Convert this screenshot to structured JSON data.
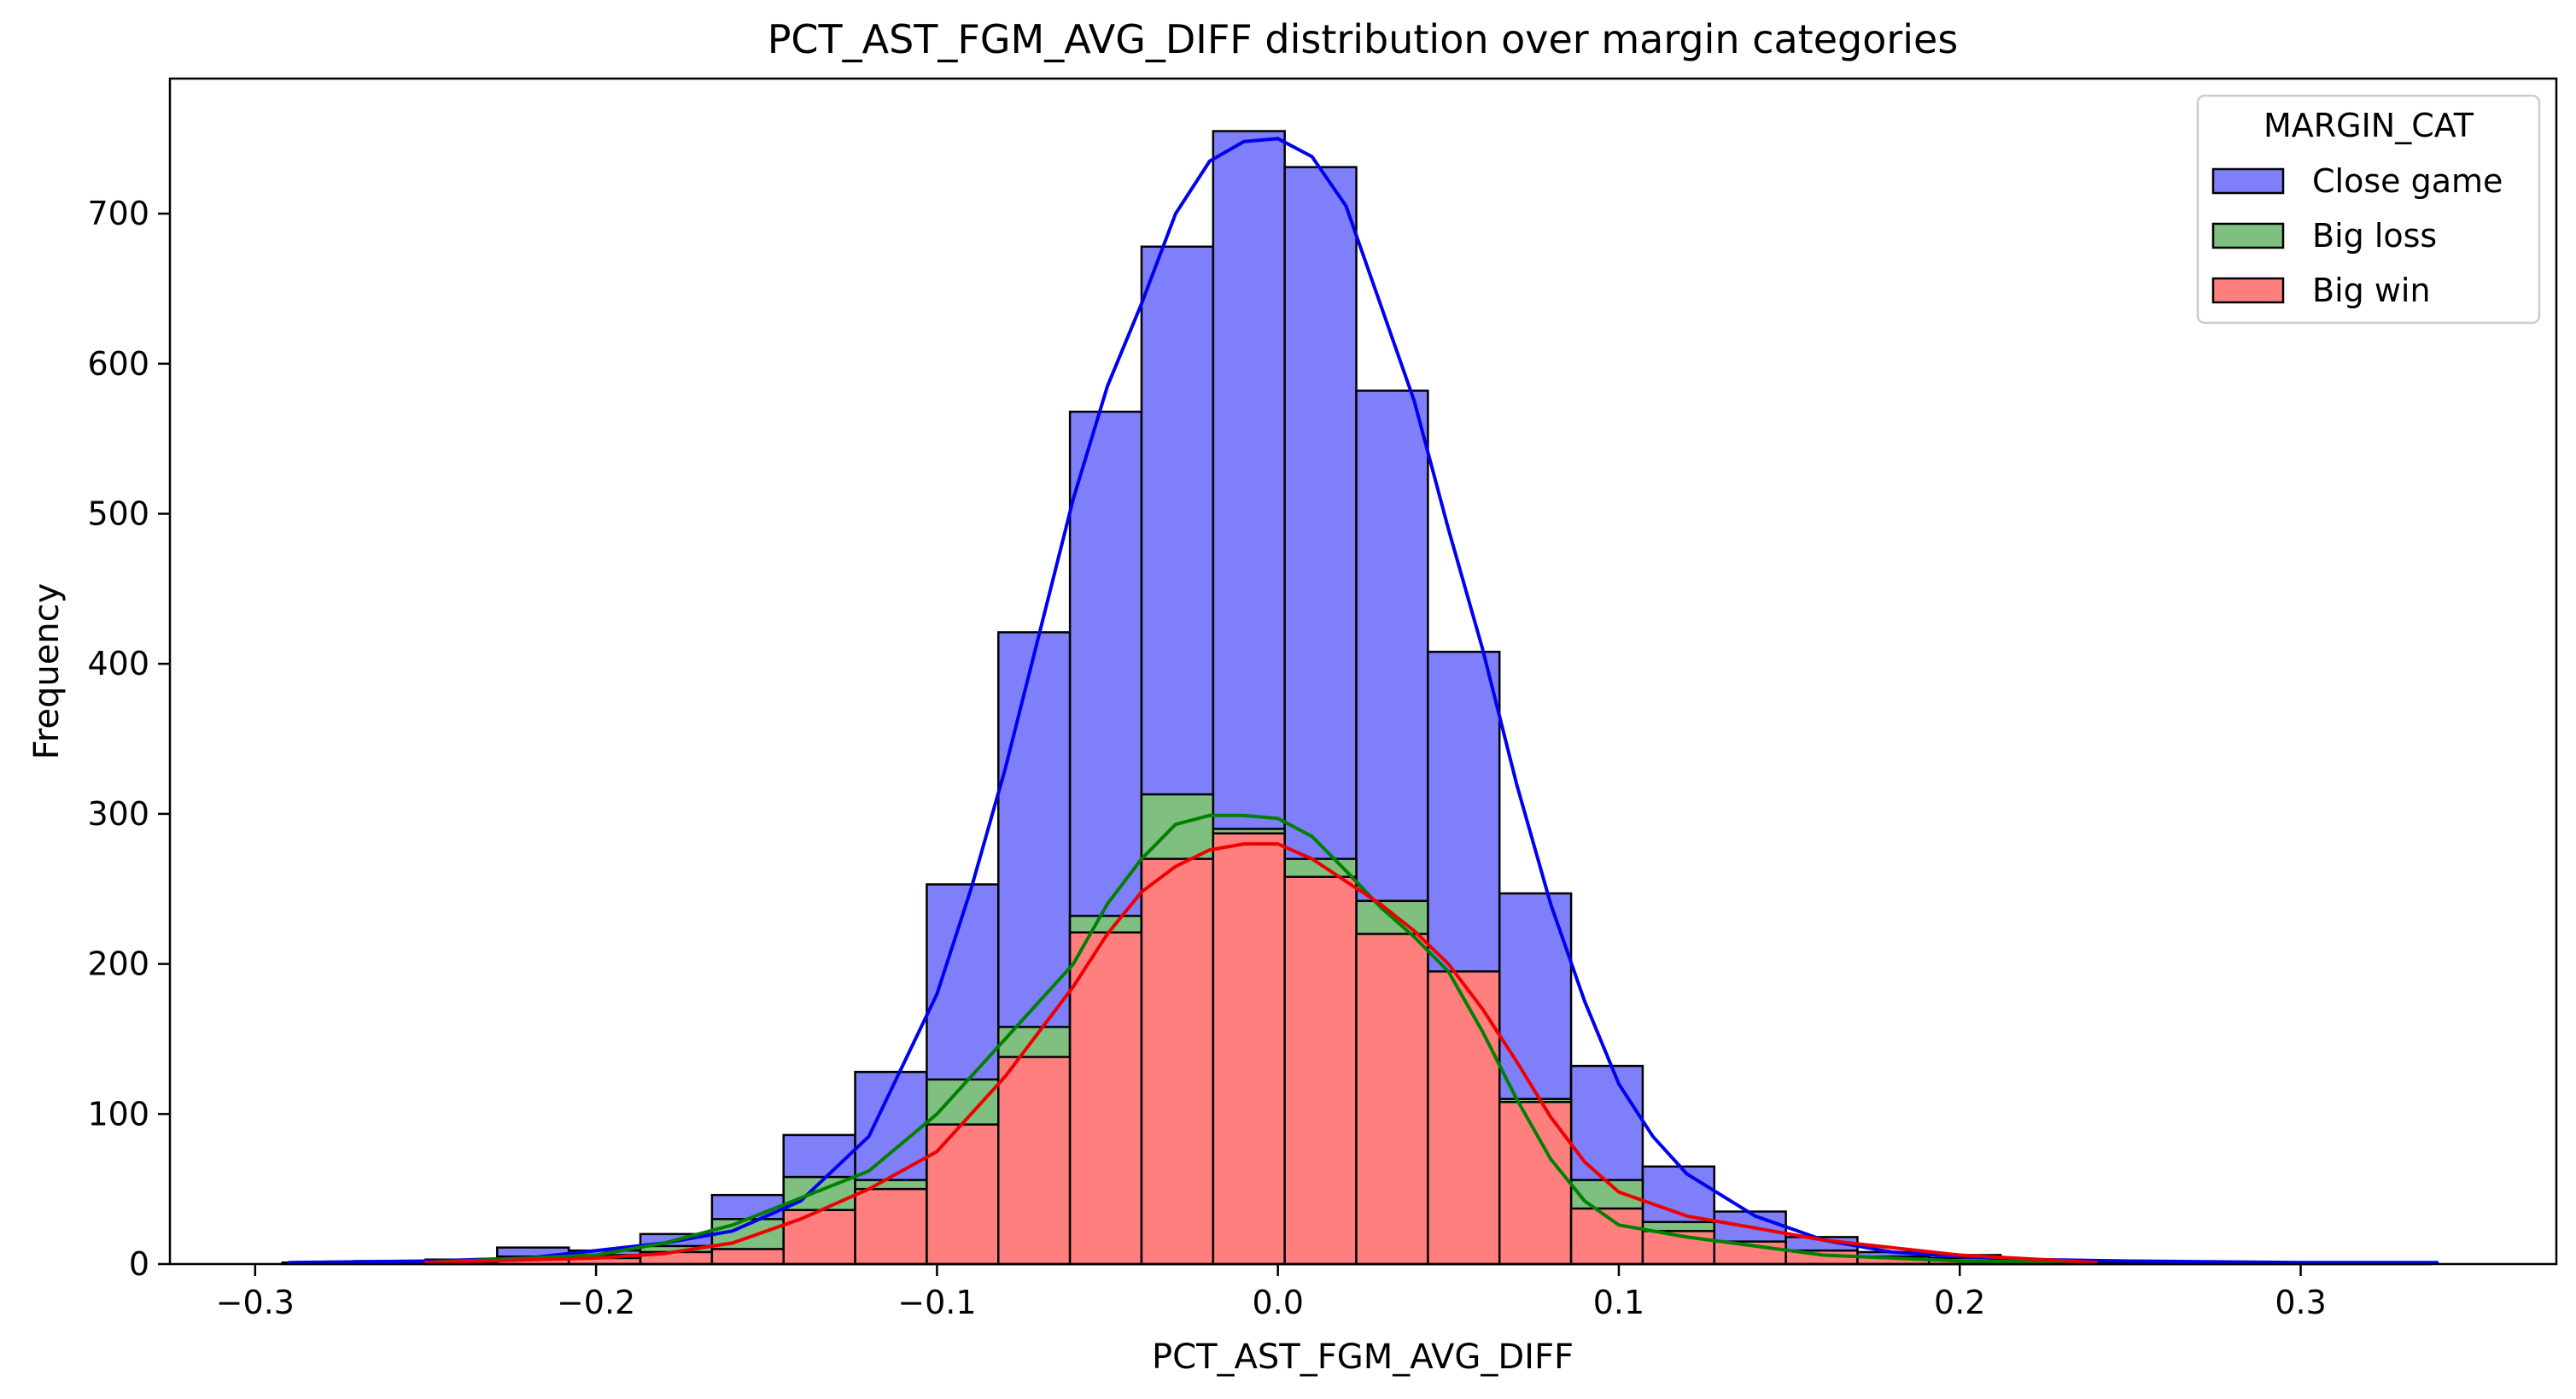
{
  "chart_data": {
    "type": "histogram",
    "title": "PCT_AST_FGM_AVG_DIFF distribution over margin categories",
    "xlabel": "PCT_AST_FGM_AVG_DIFF",
    "ylabel": "Frequency",
    "xlim": [
      -0.325,
      0.375
    ],
    "ylim": [
      0,
      790
    ],
    "xticks": [
      -0.3,
      -0.2,
      -0.1,
      0.0,
      0.1,
      0.2,
      0.3
    ],
    "xtick_labels": [
      "−0.3",
      "−0.2",
      "−0.1",
      "0.0",
      "0.1",
      "0.2",
      "0.3"
    ],
    "yticks": [
      0,
      100,
      200,
      300,
      400,
      500,
      600,
      700
    ],
    "ytick_labels": [
      "0",
      "100",
      "200",
      "300",
      "400",
      "500",
      "600",
      "700"
    ],
    "grid": false,
    "legend": {
      "title": "MARGIN_CAT",
      "placement": "top-right"
    },
    "bin_start": -0.292,
    "bin_width": 0.021,
    "series": [
      {
        "name": "Close game",
        "bar_color": "#7f7ff9",
        "line_color": "#0000ee",
        "counts": [
          1,
          2,
          3,
          11,
          9,
          20,
          46,
          86,
          128,
          253,
          421,
          568,
          678,
          755,
          731,
          582,
          408,
          247,
          132,
          65,
          35,
          18,
          8,
          6,
          3,
          2,
          1,
          1,
          1,
          1
        ],
        "kde_x": [
          -0.29,
          -0.25,
          -0.22,
          -0.2,
          -0.18,
          -0.16,
          -0.14,
          -0.12,
          -0.1,
          -0.09,
          -0.08,
          -0.07,
          -0.06,
          -0.05,
          -0.04,
          -0.03,
          -0.02,
          -0.01,
          0.0,
          0.01,
          0.02,
          0.03,
          0.04,
          0.05,
          0.06,
          0.07,
          0.08,
          0.09,
          0.1,
          0.11,
          0.12,
          0.14,
          0.16,
          0.18,
          0.2,
          0.22,
          0.25,
          0.3,
          0.34
        ],
        "kde_y": [
          1,
          2,
          4,
          9,
          14,
          22,
          42,
          85,
          180,
          250,
          330,
          420,
          510,
          585,
          640,
          700,
          735,
          748,
          750,
          738,
          705,
          640,
          575,
          490,
          410,
          320,
          240,
          175,
          120,
          85,
          60,
          32,
          16,
          8,
          5,
          3,
          2,
          1,
          1
        ]
      },
      {
        "name": "Big loss",
        "bar_color": "#7fbf7f",
        "line_color": "#008000",
        "counts": [
          0,
          0,
          1,
          5,
          6,
          12,
          30,
          58,
          56,
          123,
          158,
          232,
          313,
          290,
          270,
          242,
          162,
          110,
          56,
          28,
          14,
          6,
          3,
          2,
          1,
          0,
          0,
          0,
          0,
          0
        ],
        "kde_x": [
          -0.25,
          -0.2,
          -0.18,
          -0.16,
          -0.14,
          -0.12,
          -0.1,
          -0.08,
          -0.06,
          -0.05,
          -0.04,
          -0.03,
          -0.02,
          -0.01,
          0.0,
          0.01,
          0.02,
          0.03,
          0.04,
          0.05,
          0.06,
          0.07,
          0.08,
          0.09,
          0.1,
          0.12,
          0.14,
          0.16,
          0.2,
          0.24
        ],
        "kde_y": [
          1,
          6,
          14,
          26,
          44,
          62,
          100,
          150,
          200,
          240,
          270,
          293,
          299,
          299,
          297,
          285,
          262,
          238,
          218,
          195,
          155,
          110,
          70,
          42,
          26,
          18,
          12,
          6,
          2,
          1
        ]
      },
      {
        "name": "Big win",
        "bar_color": "#ff7f7f",
        "line_color": "#ee0000",
        "counts": [
          0,
          0,
          0,
          3,
          4,
          8,
          10,
          36,
          50,
          93,
          138,
          221,
          270,
          287,
          258,
          220,
          195,
          108,
          37,
          22,
          15,
          9,
          5,
          4,
          2,
          1,
          1,
          1,
          1,
          1
        ],
        "kde_x": [
          -0.25,
          -0.2,
          -0.18,
          -0.16,
          -0.14,
          -0.12,
          -0.1,
          -0.08,
          -0.06,
          -0.05,
          -0.04,
          -0.03,
          -0.02,
          -0.01,
          0.0,
          0.01,
          0.02,
          0.03,
          0.04,
          0.05,
          0.06,
          0.07,
          0.08,
          0.09,
          0.1,
          0.12,
          0.14,
          0.16,
          0.2,
          0.24
        ],
        "kde_y": [
          1,
          4,
          7,
          14,
          30,
          50,
          75,
          125,
          185,
          220,
          248,
          265,
          276,
          280,
          280,
          270,
          255,
          240,
          222,
          200,
          170,
          135,
          98,
          68,
          48,
          32,
          24,
          16,
          6,
          1
        ]
      }
    ]
  }
}
